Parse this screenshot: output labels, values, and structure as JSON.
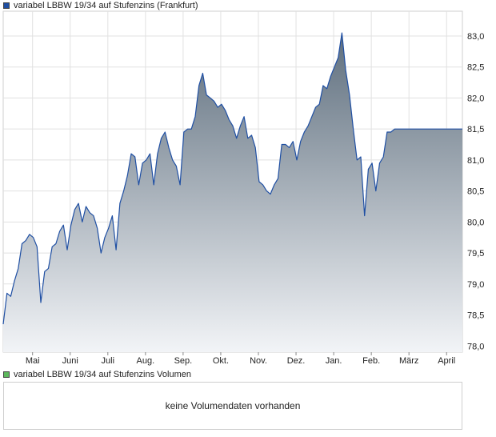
{
  "legend": {
    "price_label": "variabel LBBW 19/34 auf Stufenzins (Frankfurt)",
    "volume_label": "variabel LBBW 19/34 auf Stufenzins Volumen"
  },
  "volume_panel": {
    "message": "keine Volumendaten vorhanden"
  },
  "colors": {
    "line": "#1f4fa3",
    "fill_top": "#5f6f7e",
    "fill_bottom": "#f2f4f7",
    "grid": "#e1e1e1",
    "frame": "#cfcfcf",
    "price_swatch": "#1f4fa3",
    "volume_swatch": "#5cb85c"
  },
  "chart_data": {
    "type": "area",
    "title": "variabel LBBW 19/34 auf Stufenzins (Frankfurt)",
    "xlabel": "",
    "ylabel": "",
    "x_tick_labels": [
      "Mai",
      "Juni",
      "Juli",
      "Aug.",
      "Sep.",
      "Okt.",
      "Nov.",
      "Dez.",
      "Jan.",
      "Feb.",
      "März",
      "April"
    ],
    "x_range": [
      0,
      12.2
    ],
    "x_ticks": [
      0.78,
      1.78,
      2.78,
      3.78,
      4.78,
      5.78,
      6.78,
      7.78,
      8.78,
      9.78,
      10.78,
      11.78
    ],
    "y_ticks": [
      78.0,
      78.5,
      79.0,
      79.5,
      80.0,
      80.5,
      81.0,
      81.5,
      82.0,
      82.5,
      83.0
    ],
    "y_tick_labels": [
      "78,0",
      "78,5",
      "79,0",
      "79,5",
      "80,0",
      "80,5",
      "81,0",
      "81,5",
      "82,0",
      "82,5",
      "83,0"
    ],
    "ylim": [
      77.9,
      83.4
    ],
    "grid": true,
    "series": [
      {
        "name": "",
        "x": [
          0.0,
          0.1,
          0.2,
          0.3,
          0.4,
          0.5,
          0.6,
          0.7,
          0.8,
          0.9,
          1.0,
          1.1,
          1.2,
          1.3,
          1.4,
          1.5,
          1.6,
          1.7,
          1.8,
          1.9,
          2.0,
          2.1,
          2.2,
          2.3,
          2.4,
          2.5,
          2.6,
          2.7,
          2.8,
          2.9,
          3.0,
          3.1,
          3.2,
          3.3,
          3.4,
          3.5,
          3.6,
          3.7,
          3.8,
          3.9,
          4.0,
          4.1,
          4.2,
          4.3,
          4.4,
          4.5,
          4.6,
          4.7,
          4.8,
          4.9,
          5.0,
          5.1,
          5.2,
          5.3,
          5.4,
          5.5,
          5.6,
          5.7,
          5.8,
          5.9,
          6.0,
          6.1,
          6.2,
          6.3,
          6.4,
          6.5,
          6.6,
          6.7,
          6.8,
          6.9,
          7.0,
          7.1,
          7.2,
          7.3,
          7.4,
          7.5,
          7.6,
          7.7,
          7.8,
          7.9,
          8.0,
          8.1,
          8.2,
          8.3,
          8.4,
          8.5,
          8.6,
          8.7,
          8.8,
          8.9,
          9.0,
          9.1,
          9.2,
          9.3,
          9.4,
          9.5,
          9.6,
          9.7,
          9.8,
          9.9,
          10.0,
          10.1,
          10.2,
          10.3,
          10.4,
          10.5,
          10.6,
          10.7,
          10.8,
          10.9,
          11.0,
          11.1,
          11.2,
          11.3,
          11.4,
          11.5,
          11.6,
          11.7,
          11.8,
          11.9,
          12.0,
          12.1,
          12.2
        ],
        "values": [
          78.35,
          78.85,
          78.8,
          79.05,
          79.25,
          79.65,
          79.7,
          79.8,
          79.75,
          79.6,
          78.7,
          79.2,
          79.25,
          79.6,
          79.65,
          79.85,
          79.95,
          79.55,
          79.95,
          80.2,
          80.3,
          80.0,
          80.25,
          80.15,
          80.1,
          79.9,
          79.5,
          79.75,
          79.9,
          80.1,
          79.55,
          80.3,
          80.5,
          80.75,
          81.1,
          81.05,
          80.6,
          80.95,
          81.0,
          81.1,
          80.6,
          81.1,
          81.35,
          81.45,
          81.2,
          81.0,
          80.9,
          80.6,
          81.45,
          81.5,
          81.5,
          81.7,
          82.2,
          82.4,
          82.05,
          82.0,
          81.95,
          81.85,
          81.9,
          81.8,
          81.65,
          81.55,
          81.35,
          81.55,
          81.7,
          81.35,
          81.4,
          81.2,
          80.65,
          80.6,
          80.5,
          80.45,
          80.6,
          80.7,
          81.25,
          81.25,
          81.2,
          81.3,
          81.0,
          81.3,
          81.45,
          81.55,
          81.7,
          81.85,
          81.9,
          82.2,
          82.15,
          82.35,
          82.5,
          82.65,
          83.05,
          82.45,
          82.05,
          81.5,
          81.0,
          81.05,
          80.1,
          80.85,
          80.95,
          80.5,
          80.95,
          81.05,
          81.45,
          81.45,
          81.5,
          81.5,
          81.5,
          81.5,
          81.5,
          81.5,
          81.5,
          81.5,
          81.5,
          81.5,
          81.5,
          81.5,
          81.5,
          81.5,
          81.5,
          81.5,
          81.5,
          81.5,
          81.5
        ]
      }
    ]
  }
}
